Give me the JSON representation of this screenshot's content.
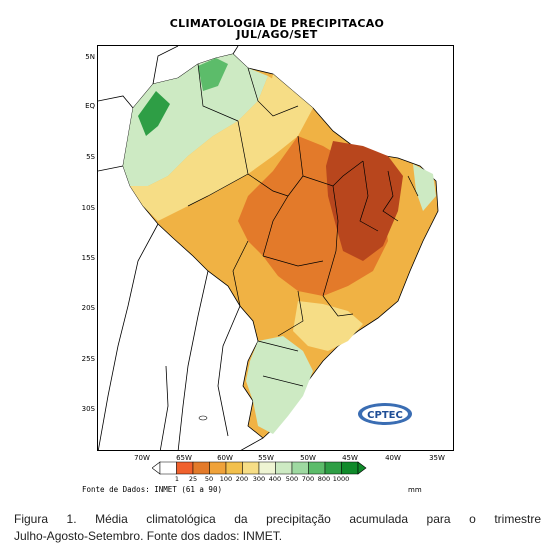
{
  "map": {
    "title": "CLIMATOLOGIA DE PRECIPITACAO",
    "subtitle": "JUL/AGO/SET",
    "lat_ticks": [
      "5N",
      "EQ",
      "5S",
      "10S",
      "15S",
      "20S",
      "25S",
      "30S"
    ],
    "lon_ticks": [
      "70W",
      "65W",
      "60W",
      "55W",
      "50W",
      "45W",
      "40W",
      "35W"
    ],
    "logo_text": "CPTEC",
    "colors": {
      "land_dry": "#f2d79a",
      "ocean": "#ffffff",
      "boundary": "#000000"
    }
  },
  "legend": {
    "labels": [
      "1",
      "25",
      "50",
      "100",
      "200",
      "300",
      "400",
      "500",
      "700",
      "800",
      "1000"
    ],
    "colors": [
      "#ffffff",
      "#f0612d",
      "#e37a2a",
      "#efa23a",
      "#f2c04d",
      "#f6dd86",
      "#eef4d3",
      "#cdeac3",
      "#9ed9a1",
      "#5cbc6a",
      "#2e9e45",
      "#0f8a2a"
    ],
    "unit": "mm",
    "source": "Fonte de Dados: INMET (61 a 90)"
  },
  "caption": {
    "line1": "Figura 1. Média climatológica da precipitação acumulada para o trimestre",
    "line2": "Julho-Agosto-Setembro. Fonte dos dados: INMET."
  }
}
